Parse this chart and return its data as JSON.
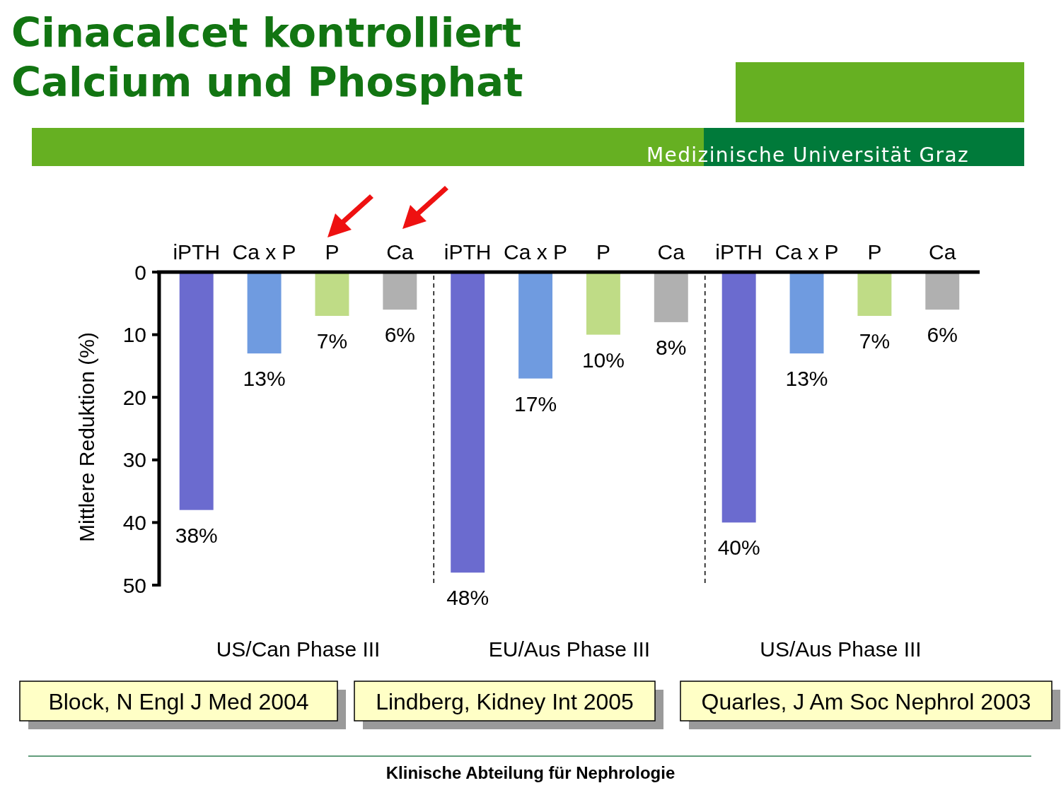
{
  "chart_data": {
    "type": "bar",
    "title": "Cinacalcet kontrolliert Calcium und Phosphat",
    "ylabel": "Mittlere Reduktion (%)",
    "categories": [
      "iPTH",
      "Ca x P",
      "P",
      "Ca",
      "iPTH",
      "Ca x P",
      "P",
      "Ca",
      "iPTH",
      "Ca x P",
      "P",
      "Ca"
    ],
    "values": [
      38,
      13,
      7,
      6,
      48,
      17,
      10,
      8,
      40,
      13,
      7,
      6
    ],
    "colors": [
      "#6b6bcf",
      "#6f9be0",
      "#bfdc86",
      "#b0b0b0",
      "#6b6bcf",
      "#6f9be0",
      "#bfdc86",
      "#b0b0b0",
      "#6b6bcf",
      "#6f9be0",
      "#bfdc86",
      "#b0b0b0"
    ],
    "value_labels": [
      "38%",
      "13%",
      "7%",
      "6%",
      "48%",
      "17%",
      "10%",
      "8%",
      "40%",
      "13%",
      "7%",
      "6%"
    ],
    "ylim": [
      50,
      0
    ],
    "yticks": [
      0,
      10,
      20,
      30,
      40,
      50
    ],
    "annotations": [
      "US/Can Phase III",
      "EU/Aus Phase III",
      "US/Aus Phase III",
      "Block, N Engl J Med 2004",
      "Lindberg, Kidney Int 2005",
      "Quarles, J Am Soc Nephrol 2003",
      "Medizinische Universität Graz",
      "Klinische Abteilung für Nephrologie"
    ]
  }
}
